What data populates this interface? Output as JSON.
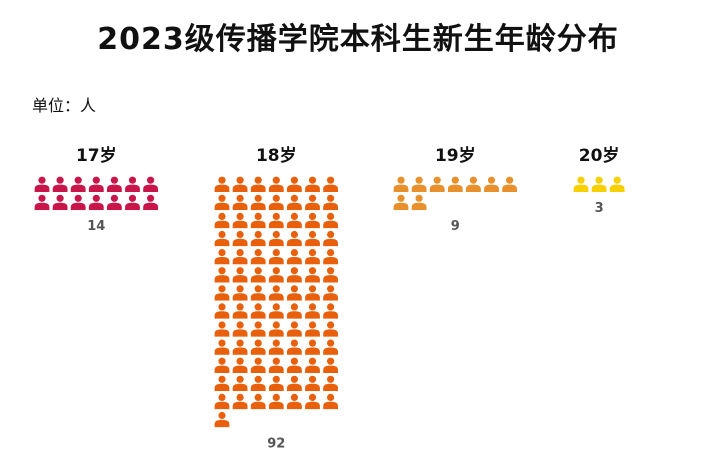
{
  "title": "2023级传播学院本科生新生年龄分布",
  "unit_text": "单位：人",
  "chart_data": {
    "type": "pictograph",
    "categories": [
      "17岁",
      "18岁",
      "19岁",
      "20岁"
    ],
    "values": [
      14,
      92,
      9,
      3
    ],
    "colors": [
      "#c8164a",
      "#e8600c",
      "#e8902c",
      "#f7d000"
    ],
    "icon": "person-icon",
    "icons_per_row": 7
  }
}
